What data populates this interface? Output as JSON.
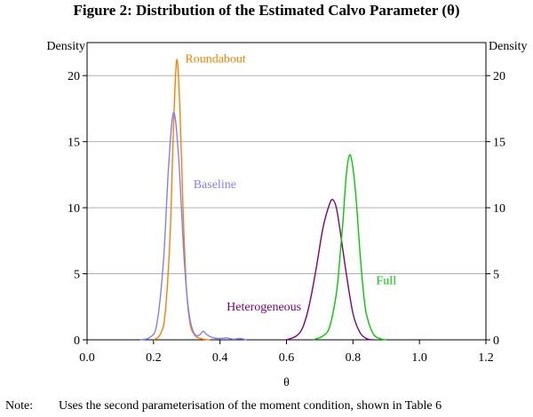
{
  "title": "Figure 2: Distribution of the Estimated Calvo Parameter (θ)",
  "note_label": "Note:",
  "note_text": "Uses the second parameterisation of the moment condition, shown in Table 6",
  "chart_data": {
    "type": "line",
    "title": "Figure 2: Distribution of the Estimated Calvo Parameter (θ)",
    "xlabel": "θ",
    "ylabel_left": "Density",
    "ylabel_right": "Density",
    "xlim": [
      0.0,
      1.2
    ],
    "ylim": [
      0,
      22.5
    ],
    "xticks": [
      "0.0",
      "0.2",
      "0.4",
      "0.6",
      "0.8",
      "1.0",
      "1.2"
    ],
    "yticks": [
      "0",
      "5",
      "10",
      "15",
      "20"
    ],
    "grid": "horizontal",
    "series": [
      {
        "name": "Roundabout",
        "color": "#ff8000",
        "x": [
          0.2,
          0.22,
          0.235,
          0.25,
          0.26,
          0.27,
          0.28,
          0.29,
          0.3,
          0.31,
          0.32,
          0.33,
          0.35,
          0.37
        ],
        "y": [
          0,
          0.4,
          2,
          8,
          16,
          21.2,
          17,
          9,
          3.5,
          1.2,
          0.5,
          0.2,
          0.05,
          0
        ]
      },
      {
        "name": "Baseline",
        "color": "#8080ff",
        "x": [
          0.16,
          0.19,
          0.21,
          0.23,
          0.245,
          0.26,
          0.275,
          0.29,
          0.3,
          0.31,
          0.32,
          0.33,
          0.34,
          0.35,
          0.36,
          0.38,
          0.4,
          0.42,
          0.44,
          0.46,
          0.48
        ],
        "y": [
          0,
          0.2,
          1.2,
          6,
          13,
          17.2,
          14,
          7,
          3.5,
          1.5,
          0.6,
          0.3,
          0.4,
          0.65,
          0.4,
          0.15,
          0.1,
          0.15,
          0.05,
          0.1,
          0
        ]
      },
      {
        "name": "Heterogeneous",
        "color": "#800080",
        "x": [
          0.6,
          0.63,
          0.65,
          0.67,
          0.69,
          0.71,
          0.73,
          0.74,
          0.75,
          0.76,
          0.78,
          0.8,
          0.82,
          0.84,
          0.86
        ],
        "y": [
          0,
          0.3,
          1,
          2.8,
          5.5,
          8.5,
          10.3,
          10.6,
          10,
          8.5,
          5,
          2,
          0.6,
          0.1,
          0
        ]
      },
      {
        "name": "Full",
        "color": "#00cc00",
        "x": [
          0.68,
          0.71,
          0.73,
          0.75,
          0.76,
          0.77,
          0.78,
          0.79,
          0.8,
          0.81,
          0.82,
          0.83,
          0.84,
          0.86,
          0.88,
          0.9
        ],
        "y": [
          0,
          0.3,
          1,
          3.5,
          6,
          9,
          12.5,
          14,
          13,
          10.5,
          7,
          4,
          2,
          0.5,
          0.1,
          0
        ]
      }
    ],
    "annotations": [
      {
        "text": "Roundabout",
        "x": 0.295,
        "y": 21.0,
        "color": "#ff8000"
      },
      {
        "text": "Baseline",
        "x": 0.32,
        "y": 11.5,
        "color": "#8080ff"
      },
      {
        "text": "Heterogeneous",
        "x": 0.42,
        "y": 2.2,
        "color": "#800080"
      },
      {
        "text": "Full",
        "x": 0.87,
        "y": 4.2,
        "color": "#00cc00"
      }
    ]
  }
}
